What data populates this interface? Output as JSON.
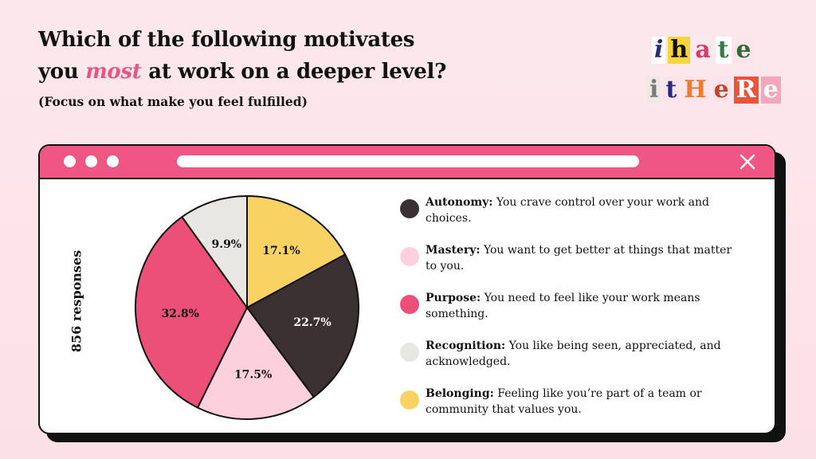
{
  "header": {
    "title_line1": "Which of the following motivates",
    "title_line2_pre": "you",
    "title_emphasis": "most",
    "title_line2_post": "at work on a deeper level?",
    "subtitle": "(Focus on what make you feel fulfilled)"
  },
  "logo": {
    "row1": [
      "i",
      "h",
      "a",
      "t",
      "e"
    ],
    "row2": [
      "i",
      "t",
      "H",
      "e",
      "R",
      "e"
    ]
  },
  "colors": {
    "accent": "#ef5683",
    "autonomy": "#3b3032",
    "mastery": "#fcd0dd",
    "purpose": "#ec5078",
    "recognition": "#e9e7e1",
    "belonging": "#f9d264"
  },
  "chart_data": {
    "type": "pie",
    "total_label": "856 responses",
    "slices": [
      {
        "name": "Belonging",
        "value": 17.1,
        "label": "17.1%",
        "color": "#f9d264"
      },
      {
        "name": "Autonomy",
        "value": 22.7,
        "label": "22.7%",
        "color": "#3b3032"
      },
      {
        "name": "Mastery",
        "value": 17.5,
        "label": "17.5%",
        "color": "#fcd0dd"
      },
      {
        "name": "Purpose",
        "value": 32.8,
        "label": "32.8%",
        "color": "#ec5078"
      },
      {
        "name": "Recognition",
        "value": 9.9,
        "label": "9.9%",
        "color": "#e9e7e1"
      }
    ]
  },
  "legend": [
    {
      "name": "Autonomy:",
      "desc": " You crave control over your work and choices.",
      "color": "#3b3032"
    },
    {
      "name": "Mastery:",
      "desc": " You want to get better at things that matter to you.",
      "color": "#fcd0dd"
    },
    {
      "name": "Purpose:",
      "desc": " You need to feel like your work means something.",
      "color": "#ec5078"
    },
    {
      "name": "Recognition:",
      "desc": " You like being seen, appreciated, and acknowledged.",
      "color": "#e9e7e1"
    },
    {
      "name": "Belonging:",
      "desc": " Feeling like you’re part of a team or community that values you.",
      "color": "#f9d264"
    }
  ]
}
